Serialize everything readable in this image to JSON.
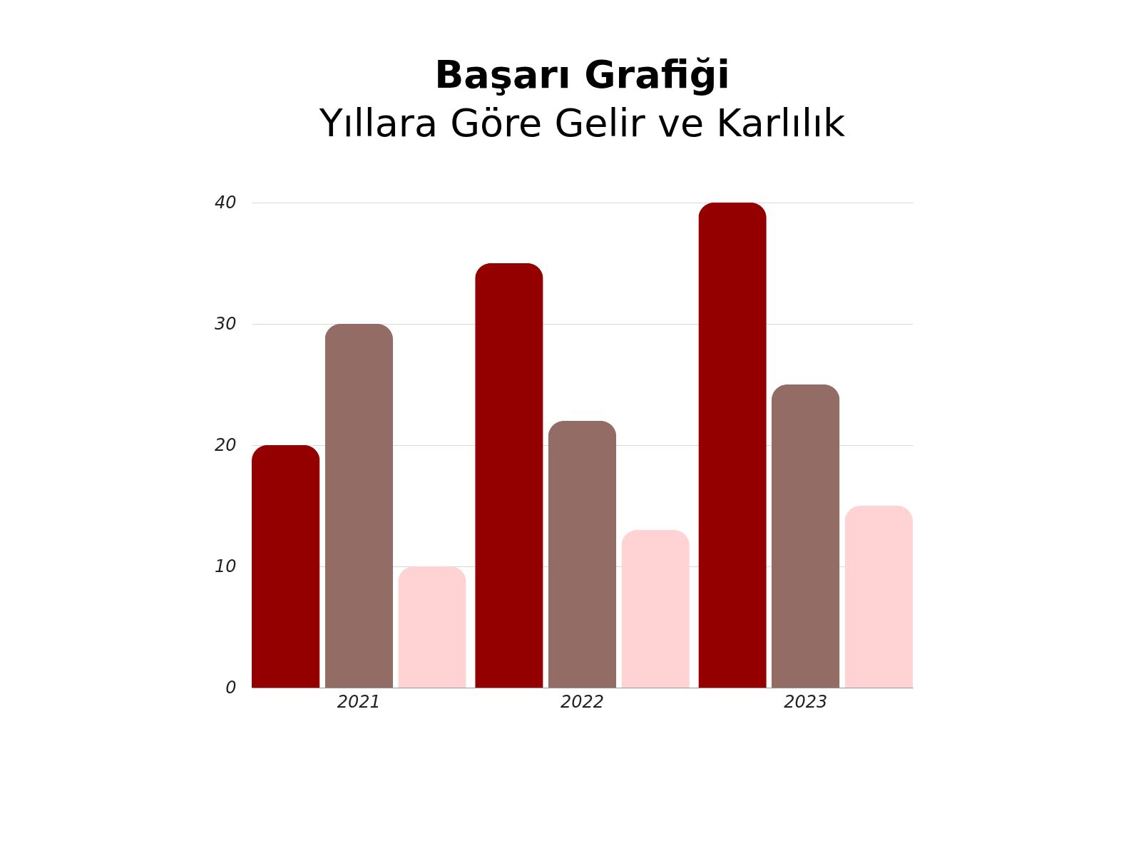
{
  "chart_data": {
    "type": "bar",
    "title": "Başarı Grafiği",
    "subtitle": "Yıllara Göre Gelir ve Karlılık",
    "categories": [
      "2021",
      "2022",
      "2023"
    ],
    "series": [
      {
        "color": "#940000",
        "values": [
          20,
          35,
          40
        ]
      },
      {
        "color": "#946c66",
        "values": [
          30,
          22,
          25
        ]
      },
      {
        "color": "#ffd3d3",
        "values": [
          10,
          13,
          15
        ]
      }
    ],
    "ylim": [
      0,
      40
    ],
    "yticks": [
      0,
      10,
      20,
      30,
      40
    ],
    "grid": "y"
  }
}
